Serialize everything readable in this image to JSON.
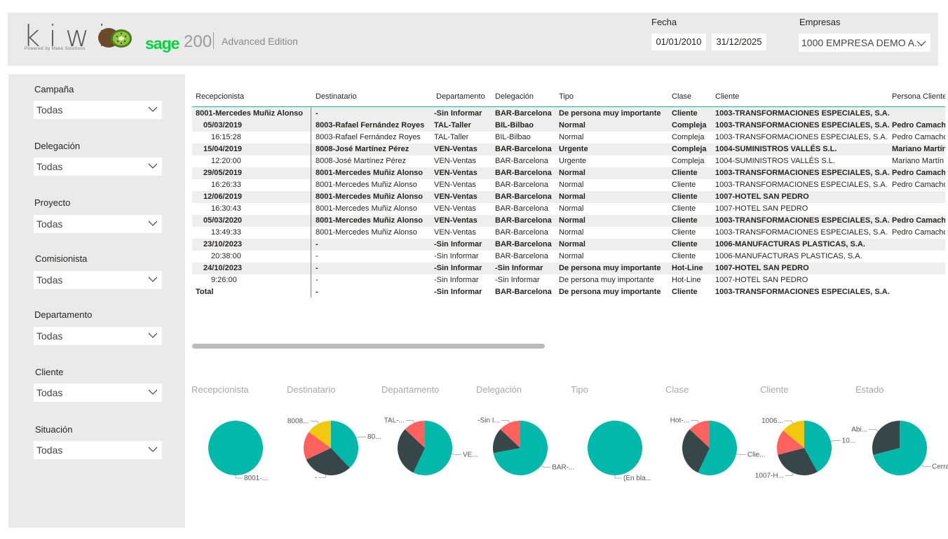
{
  "colors": {
    "teal": "#01b8aa",
    "dark": "#374649",
    "red": "#fd625e",
    "yellow": "#f2c80f",
    "header_bg": "#eaeaea"
  },
  "header": {
    "logo_text": "kiwi",
    "logo_tagline": "Powered by Make Solutions",
    "sage_brand": "sage",
    "sage_version": "200",
    "sage_edition": "Advanced Edition",
    "fecha_label": "Fecha",
    "date_from": "01/01/2010",
    "date_to": "31/12/2025",
    "empresas_label": "Empresas",
    "empresa_value": "1000 EMPRESA DEMO A..."
  },
  "slicers": [
    {
      "label": "Campaña",
      "value": "Todas"
    },
    {
      "label": "Delegación",
      "value": "Todas"
    },
    {
      "label": "Proyecto",
      "value": "Todas"
    },
    {
      "label": "Comisionista",
      "value": "Todas"
    },
    {
      "label": "Departamento",
      "value": "Todas"
    },
    {
      "label": "Cliente",
      "value": "Todas"
    },
    {
      "label": "Situación",
      "value": "Todas"
    }
  ],
  "table": {
    "columns": [
      "Recepcionista",
      "Destinatario",
      "Departamento",
      "Delegación",
      "Tipo",
      "Clase",
      "Cliente",
      "Persona Cliente"
    ],
    "rows": [
      {
        "bold": true,
        "shaded": true,
        "indent": false,
        "cells": [
          "8001-Mercedes Muñiz Alonso",
          "-",
          "-Sin Informar",
          "BAR-Barcelona",
          "De persona muy importante",
          "Cliente",
          "1003-TRANSFORMACIONES ESPECIALES, S.A.",
          ""
        ]
      },
      {
        "bold": true,
        "shaded": true,
        "indent": true,
        "cells": [
          "05/03/2019",
          "8003-Rafael Fernández Royes",
          "TAL-Taller",
          "BIL-Bilbao",
          "Normal",
          "Compleja",
          "1003-TRANSFORMACIONES ESPECIALES, S.A.",
          "Pedro Camacho"
        ]
      },
      {
        "bold": false,
        "shaded": false,
        "indent": true,
        "cells": [
          "16:15:28",
          "8003-Rafael Fernández Royes",
          "TAL-Taller",
          "BIL-Bilbao",
          "Normal",
          "Compleja",
          "1003-TRANSFORMACIONES ESPECIALES, S.A.",
          "Pedro Camacho"
        ]
      },
      {
        "bold": true,
        "shaded": true,
        "indent": true,
        "cells": [
          "15/04/2019",
          "8008-José Martínez Pérez",
          "VEN-Ventas",
          "BAR-Barcelona",
          "Urgente",
          "Compleja",
          "1004-SUMINISTROS VALLÉS S.L.",
          "Mariano Martín"
        ]
      },
      {
        "bold": false,
        "shaded": false,
        "indent": true,
        "cells": [
          "12:20:00",
          "8008-José Martínez Pérez",
          "VEN-Ventas",
          "BAR-Barcelona",
          "Urgente",
          "Compleja",
          "1004-SUMINISTROS VALLÉS S.L.",
          "Mariano Martín"
        ]
      },
      {
        "bold": true,
        "shaded": true,
        "indent": true,
        "cells": [
          "29/05/2019",
          "8001-Mercedes Muñiz Alonso",
          "VEN-Ventas",
          "BAR-Barcelona",
          "Normal",
          "Cliente",
          "1003-TRANSFORMACIONES ESPECIALES, S.A.",
          "Pedro Camacho"
        ]
      },
      {
        "bold": false,
        "shaded": false,
        "indent": true,
        "cells": [
          "16:26:33",
          "8001-Mercedes Muñiz Alonso",
          "VEN-Ventas",
          "BAR-Barcelona",
          "Normal",
          "Cliente",
          "1003-TRANSFORMACIONES ESPECIALES, S.A.",
          "Pedro Camacho"
        ]
      },
      {
        "bold": true,
        "shaded": true,
        "indent": true,
        "cells": [
          "12/06/2019",
          "8001-Mercedes Muñiz Alonso",
          "VEN-Ventas",
          "BAR-Barcelona",
          "Normal",
          "Cliente",
          "1007-HOTEL SAN PEDRO",
          ""
        ]
      },
      {
        "bold": false,
        "shaded": false,
        "indent": true,
        "cells": [
          "16:30:43",
          "8001-Mercedes Muñiz Alonso",
          "VEN-Ventas",
          "BAR-Barcelona",
          "Normal",
          "Cliente",
          "1007-HOTEL SAN PEDRO",
          ""
        ]
      },
      {
        "bold": true,
        "shaded": true,
        "indent": true,
        "cells": [
          "05/03/2020",
          "8001-Mercedes Muñiz Alonso",
          "VEN-Ventas",
          "BAR-Barcelona",
          "Normal",
          "Cliente",
          "1003-TRANSFORMACIONES ESPECIALES, S.A.",
          "Pedro Camacho"
        ]
      },
      {
        "bold": false,
        "shaded": false,
        "indent": true,
        "cells": [
          "13:49:33",
          "8001-Mercedes Muñiz Alonso",
          "VEN-Ventas",
          "BAR-Barcelona",
          "Normal",
          "Cliente",
          "1003-TRANSFORMACIONES ESPECIALES, S.A.",
          "Pedro Camacho"
        ]
      },
      {
        "bold": true,
        "shaded": true,
        "indent": true,
        "cells": [
          "23/10/2023",
          "-",
          "-Sin Informar",
          "BAR-Barcelona",
          "Normal",
          "Cliente",
          "1006-MANUFACTURAS PLASTICAS, S.A.",
          ""
        ]
      },
      {
        "bold": false,
        "shaded": false,
        "indent": true,
        "cells": [
          "20:38:00",
          "-",
          "-Sin Informar",
          "BAR-Barcelona",
          "Normal",
          "Cliente",
          "1006-MANUFACTURAS PLASTICAS, S.A.",
          ""
        ]
      },
      {
        "bold": true,
        "shaded": true,
        "indent": true,
        "cells": [
          "24/10/2023",
          "-",
          "-Sin Informar",
          "-Sin Informar",
          "De persona muy importante",
          "Hot-Line",
          "1007-HOTEL SAN PEDRO",
          ""
        ]
      },
      {
        "bold": false,
        "shaded": false,
        "indent": true,
        "cells": [
          "9:26:00",
          "-",
          "-Sin Informar",
          "-Sin Informar",
          "De persona muy importante",
          "Hot-Line",
          "1007-HOTEL SAN PEDRO",
          ""
        ]
      },
      {
        "bold": true,
        "shaded": false,
        "indent": false,
        "cells": [
          "Total",
          "-",
          "-Sin Informar",
          "BAR-Barcelona",
          "De persona muy importante",
          "Cliente",
          "1003-TRANSFORMACIONES ESPECIALES, S.A.",
          ""
        ]
      }
    ]
  },
  "chart_data": [
    {
      "type": "pie",
      "title": "Recepcionista",
      "slices": [
        {
          "label": "8001-...",
          "value": 100,
          "color": "#01b8aa"
        }
      ]
    },
    {
      "type": "pie",
      "title": "Destinatario",
      "slices": [
        {
          "label": "80...",
          "value": 38,
          "color": "#01b8aa"
        },
        {
          "label": "-",
          "value": 30,
          "color": "#374649"
        },
        {
          "label": "",
          "value": 17,
          "color": "#fd625e"
        },
        {
          "label": "8008...",
          "value": 15,
          "color": "#f2c80f"
        }
      ]
    },
    {
      "type": "pie",
      "title": "Departamento",
      "slices": [
        {
          "label": "VE...",
          "value": 57,
          "color": "#01b8aa"
        },
        {
          "label": "",
          "value": 30,
          "color": "#374649"
        },
        {
          "label": "TAL-...",
          "value": 13,
          "color": "#fd625e"
        }
      ]
    },
    {
      "type": "pie",
      "title": "Delegación",
      "slices": [
        {
          "label": "BAR-...",
          "value": 72,
          "color": "#01b8aa"
        },
        {
          "label": "",
          "value": 15,
          "color": "#374649"
        },
        {
          "label": "-Sin I...",
          "value": 13,
          "color": "#fd625e"
        }
      ]
    },
    {
      "type": "pie",
      "title": "Tipo",
      "slices": [
        {
          "label": "(En bla...",
          "value": 100,
          "color": "#01b8aa"
        }
      ]
    },
    {
      "type": "pie",
      "title": "Clase",
      "slices": [
        {
          "label": "Clie...",
          "value": 57,
          "color": "#01b8aa"
        },
        {
          "label": "",
          "value": 30,
          "color": "#374649"
        },
        {
          "label": "Hot-...",
          "value": 13,
          "color": "#fd625e"
        }
      ]
    },
    {
      "type": "pie",
      "title": "Cliente",
      "slices": [
        {
          "label": "10...",
          "value": 42,
          "color": "#01b8aa"
        },
        {
          "label": "1007-H...",
          "value": 29,
          "color": "#374649"
        },
        {
          "label": "",
          "value": 15,
          "color": "#fd625e"
        },
        {
          "label": "1006...",
          "value": 14,
          "color": "#f2c80f"
        }
      ]
    },
    {
      "type": "pie",
      "title": "Estado",
      "slices": [
        {
          "label": "Cerra...",
          "value": 71,
          "color": "#01b8aa"
        },
        {
          "label": "Abi...",
          "value": 29,
          "color": "#374649"
        }
      ]
    }
  ]
}
